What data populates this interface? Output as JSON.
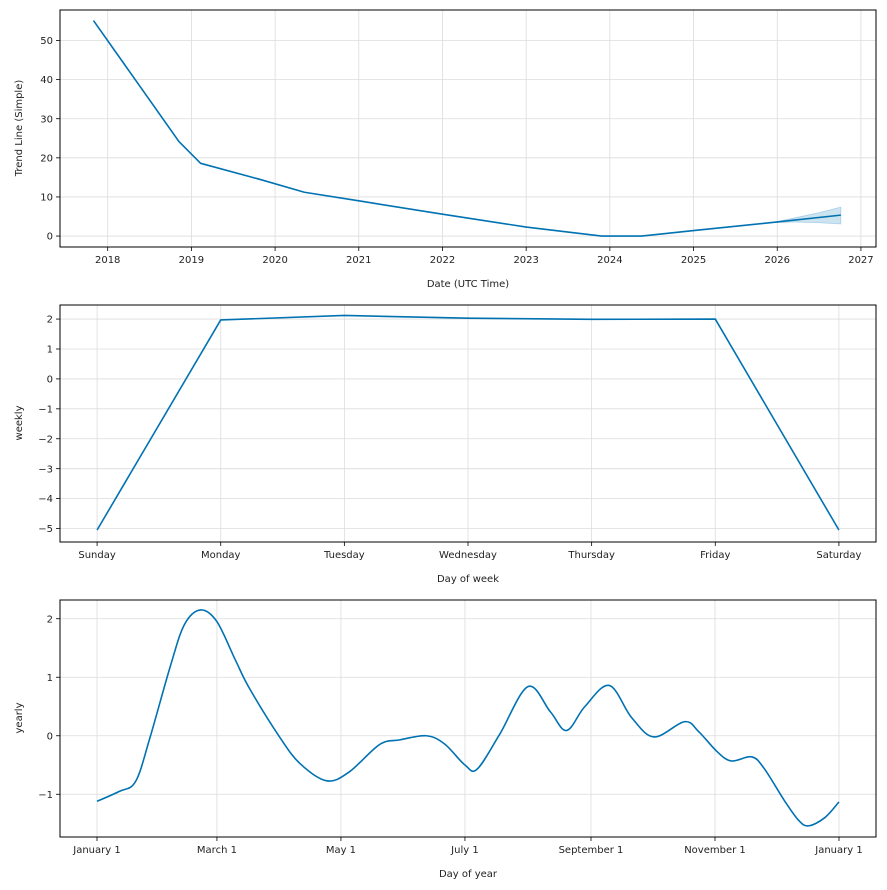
{
  "colors": {
    "line": "#0072b2",
    "band": "#0072b2"
  },
  "chart_data": [
    {
      "type": "line",
      "name": "trend",
      "xlabel": "Date (UTC Time)",
      "ylabel": "Trend Line (Simple)",
      "xlim": [
        2017.43,
        2027.18
      ],
      "ylim": [
        -2.8,
        57.8
      ],
      "grid": true,
      "xticks": [
        2018,
        2019,
        2020,
        2021,
        2022,
        2023,
        2024,
        2025,
        2026,
        2027
      ],
      "xtick_labels": [
        "2018",
        "2019",
        "2020",
        "2021",
        "2022",
        "2023",
        "2024",
        "2025",
        "2026",
        "2027"
      ],
      "yticks": [
        0,
        10,
        20,
        30,
        40,
        50
      ],
      "ytick_labels": [
        "0",
        "10",
        "20",
        "30",
        "40",
        "50"
      ],
      "x": [
        2017.83,
        2018.85,
        2019.11,
        2019.8,
        2020.35,
        2021.0,
        2022.0,
        2023.0,
        2023.9,
        2024.38,
        2025.0,
        2026.0,
        2026.76
      ],
      "y": [
        55.1,
        24.2,
        18.6,
        14.6,
        11.2,
        9.0,
        5.6,
        2.3,
        0.0,
        0.0,
        1.4,
        3.6,
        5.35
      ],
      "uncertainty": {
        "x": [
          2025.93,
          2026.2,
          2026.5,
          2026.76
        ],
        "lower": [
          3.4,
          3.6,
          3.4,
          3.1
        ],
        "upper": [
          3.4,
          4.6,
          6.0,
          7.4
        ]
      }
    },
    {
      "type": "line",
      "name": "weekly",
      "xlabel": "Day of week",
      "ylabel": "weekly",
      "categories": [
        "Sunday",
        "Monday",
        "Tuesday",
        "Wednesday",
        "Thursday",
        "Friday",
        "Saturday"
      ],
      "values": [
        -5.05,
        1.97,
        2.12,
        2.03,
        1.99,
        2.0,
        -5.05
      ],
      "xlim": [
        -0.3,
        6.3
      ],
      "ylim": [
        -5.45,
        2.47
      ],
      "grid": true,
      "yticks": [
        2,
        1,
        0,
        -1,
        -2,
        -3,
        -4,
        -5
      ],
      "ytick_labels": [
        "2",
        "1",
        "0",
        "−1",
        "−2",
        "−3",
        "−4",
        "−5"
      ]
    },
    {
      "type": "line",
      "name": "yearly",
      "xlabel": "Day of year",
      "ylabel": "yearly",
      "xlim": [
        -18.2,
        383.2
      ],
      "ylim": [
        -1.73,
        2.32
      ],
      "grid": true,
      "xticks": [
        0,
        59,
        120,
        181,
        243,
        304,
        365
      ],
      "xtick_labels": [
        "January 1",
        "March 1",
        "May 1",
        "July 1",
        "September 1",
        "November 1",
        "January 1"
      ],
      "yticks": [
        2,
        1,
        0,
        -1
      ],
      "ytick_labels": [
        "2",
        "1",
        "0",
        "−1"
      ],
      "x": [
        0,
        11,
        19,
        26,
        36,
        43,
        51,
        59,
        68,
        75,
        90,
        100,
        113,
        124,
        139,
        149,
        162,
        171,
        181,
        187,
        198,
        212,
        223,
        231,
        240,
        252,
        263,
        274,
        289,
        296,
        305,
        312,
        322,
        328,
        338,
        345,
        350,
        358,
        365
      ],
      "y": [
        -1.12,
        -0.95,
        -0.78,
        -0.04,
        1.18,
        1.9,
        2.15,
        1.95,
        1.3,
        0.81,
        -0.03,
        -0.48,
        -0.77,
        -0.62,
        -0.15,
        -0.07,
        0.0,
        -0.14,
        -0.5,
        -0.57,
        0.02,
        0.84,
        0.41,
        0.09,
        0.5,
        0.86,
        0.31,
        -0.02,
        0.24,
        0.07,
        -0.27,
        -0.43,
        -0.36,
        -0.55,
        -1.1,
        -1.44,
        -1.54,
        -1.4,
        -1.13
      ]
    }
  ]
}
